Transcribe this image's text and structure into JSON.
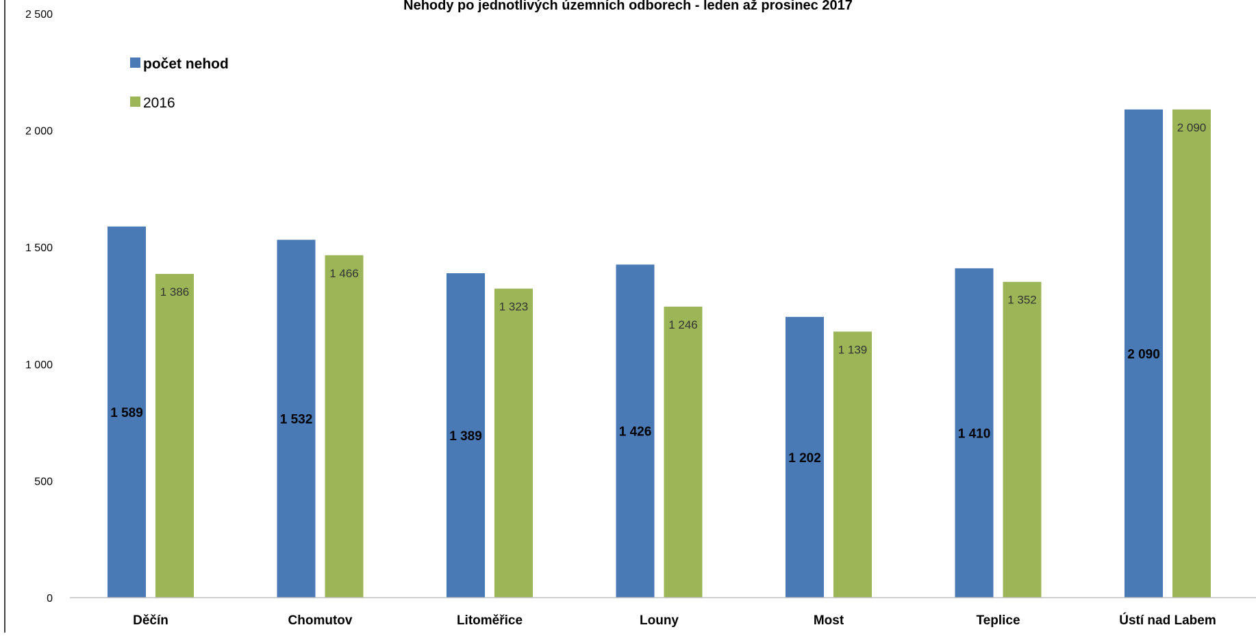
{
  "chart_data": {
    "type": "bar",
    "title": "Nehody po jednotlivých územních odborech - leden až  prosinec 2017",
    "categories": [
      "Děčín",
      "Chomutov",
      "Litoměřice",
      "Louny",
      "Most",
      "Teplice",
      "Ústí nad Labem"
    ],
    "series": [
      {
        "name": "počet nehod",
        "values": [
          1589,
          1532,
          1389,
          1426,
          1202,
          1410,
          2090
        ],
        "labels": [
          "1 589",
          "1 532",
          "1 389",
          "1 426",
          "1 202",
          "1 410",
          "2 090"
        ],
        "color": "#4a7ab5"
      },
      {
        "name": "2016",
        "values": [
          1386,
          1466,
          1323,
          1246,
          1139,
          1352,
          2090
        ],
        "labels": [
          "1 386",
          "1 466",
          "1 323",
          "1 246",
          "1 139",
          "1 352",
          "2 090"
        ],
        "color": "#9bb557"
      }
    ],
    "ylim": [
      0,
      2500
    ],
    "yticks": [
      0,
      500,
      1000,
      1500,
      2000,
      2500
    ],
    "ytick_labels": [
      "0",
      "500",
      "1 000",
      "1 500",
      "2 000",
      "2 500"
    ],
    "grid": false,
    "legend_position": "top-left"
  }
}
